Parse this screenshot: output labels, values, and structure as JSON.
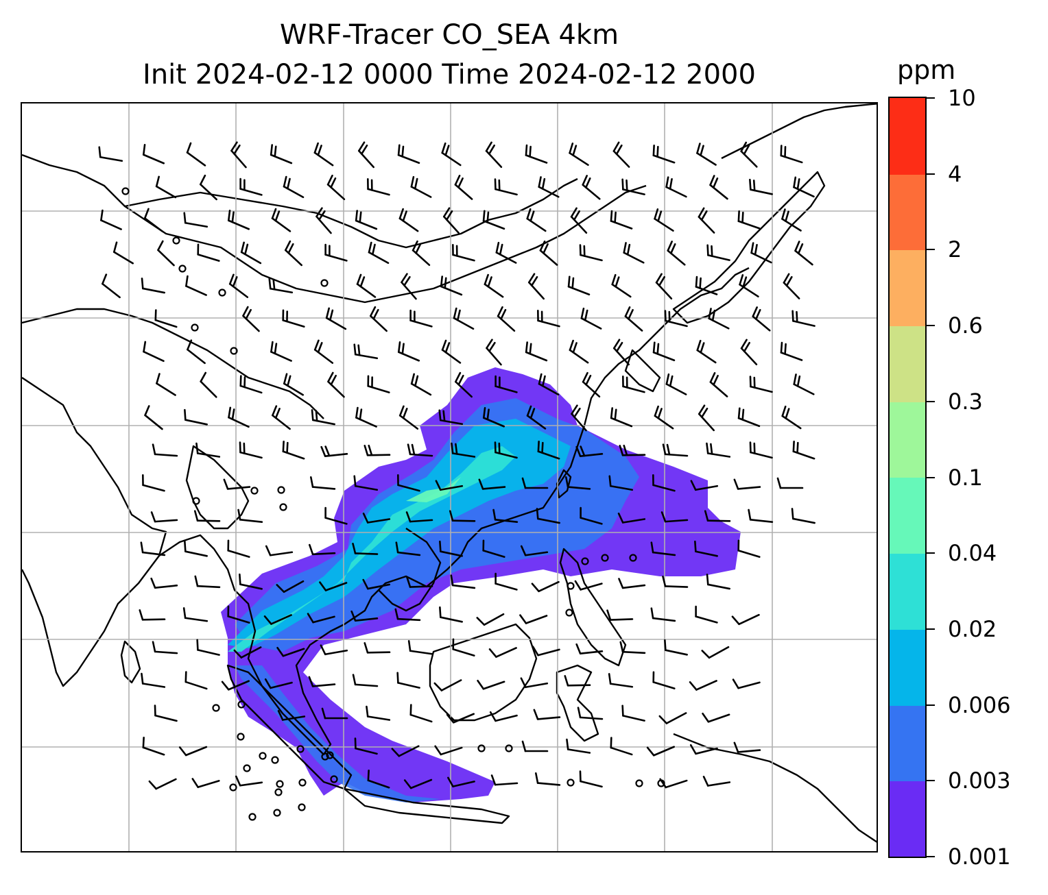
{
  "title": {
    "line1": "WRF-Tracer CO_SEA 4km",
    "line2": "Init 2024-02-12 0000 Time 2024-02-12 2000"
  },
  "colorbar": {
    "unit": "ppm",
    "tick_labels": [
      "0.001",
      "0.003",
      "0.006",
      "0.02",
      "0.04",
      "0.1",
      "0.3",
      "0.6",
      "2",
      "4",
      "10"
    ],
    "colors": [
      "#6a2cf4",
      "#3574f2",
      "#05b5ea",
      "#2ee0d6",
      "#66f8b9",
      "#9ef79a",
      "#cde286",
      "#fdaf60",
      "#fd6d38",
      "#fd2d16"
    ]
  },
  "map": {
    "layers": [
      "co-tracer-concentration",
      "coastlines",
      "lat-lon-gridlines",
      "wind-barbs",
      "calm-wind-circles"
    ],
    "gridline_color": "#b0b0b0",
    "coastline_color": "#000000",
    "barb_color": "#000000"
  }
}
